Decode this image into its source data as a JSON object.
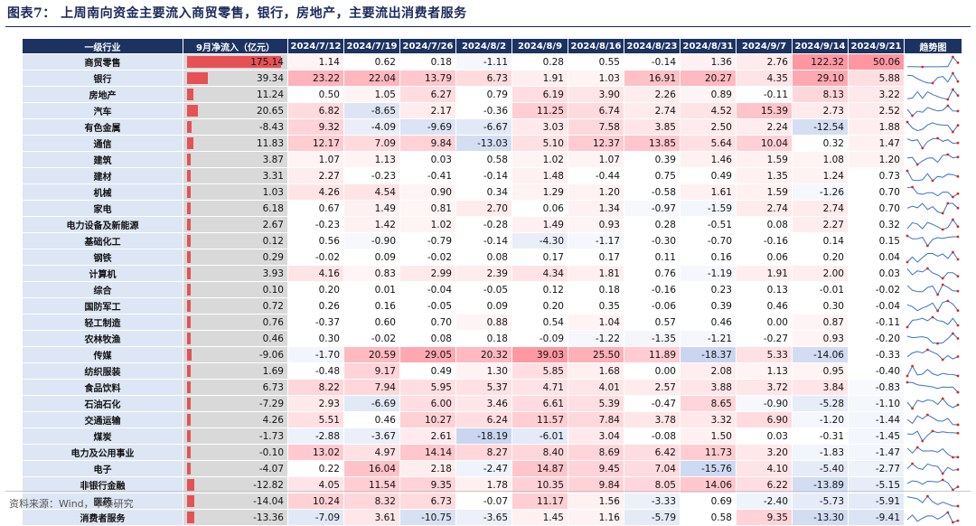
{
  "title": "图表7：  上周南向资金主要流入商贸零售，银行，房地产，主要流出消费者服务",
  "source": "资料来源：Wind，华泰研究",
  "colors": {
    "header_bg": "#1c3361",
    "industry_bg": "#dce6f4",
    "sep_bg": "#d9d9d9",
    "positive": "#e8383d",
    "negative": "#3a64b4",
    "spark_line": "#3a72c4",
    "spark_marker": "#d9262b"
  },
  "chart_data": {
    "type": "table",
    "headers": {
      "industry": "一级行业",
      "sep": "9月净流入（亿元）",
      "weeks": [
        "2024/7/12",
        "2024/7/19",
        "2024/7/26",
        "2024/8/2",
        "2024/8/9",
        "2024/8/16",
        "2024/8/23",
        "2024/8/31",
        "2024/9/7",
        "2024/9/14",
        "2024/9/21"
      ],
      "trend": "趋势图"
    },
    "rows": [
      {
        "name": "商贸零售",
        "sep": "175.14",
        "weeks": [
          "1.14",
          "0.62",
          "0.18",
          "-1.11",
          "0.28",
          "0.55",
          "-0.14",
          "1.36",
          "2.76",
          "122.32",
          "50.06"
        ]
      },
      {
        "name": "银行",
        "sep": "39.34",
        "weeks": [
          "23.22",
          "22.04",
          "13.79",
          "6.73",
          "1.91",
          "1.03",
          "16.91",
          "20.27",
          "4.35",
          "29.10",
          "5.88"
        ]
      },
      {
        "name": "房地产",
        "sep": "11.24",
        "weeks": [
          "0.50",
          "1.05",
          "6.27",
          "0.79",
          "6.19",
          "3.90",
          "2.26",
          "0.89",
          "-0.11",
          "8.13",
          "3.22"
        ]
      },
      {
        "name": "汽车",
        "sep": "20.65",
        "weeks": [
          "6.82",
          "-8.65",
          "2.17",
          "-0.36",
          "11.25",
          "6.74",
          "2.74",
          "4.52",
          "15.39",
          "2.73",
          "2.52"
        ]
      },
      {
        "name": "有色金属",
        "sep": "-8.43",
        "weeks": [
          "9.32",
          "-4.09",
          "-9.69",
          "-6.67",
          "3.03",
          "7.58",
          "3.85",
          "2.50",
          "2.24",
          "-12.54",
          "1.88"
        ]
      },
      {
        "name": "通信",
        "sep": "11.83",
        "weeks": [
          "12.17",
          "7.09",
          "9.84",
          "-13.03",
          "5.10",
          "12.37",
          "13.85",
          "5.64",
          "10.04",
          "0.32",
          "1.47"
        ]
      },
      {
        "name": "建筑",
        "sep": "3.87",
        "weeks": [
          "1.07",
          "1.13",
          "0.03",
          "0.58",
          "1.02",
          "1.07",
          "0.39",
          "1.46",
          "1.59",
          "1.08",
          "1.20"
        ]
      },
      {
        "name": "建材",
        "sep": "3.31",
        "weeks": [
          "2.27",
          "-0.23",
          "-0.41",
          "-0.14",
          "1.48",
          "-0.44",
          "0.75",
          "0.49",
          "1.35",
          "1.24",
          "0.73"
        ]
      },
      {
        "name": "机械",
        "sep": "1.03",
        "weeks": [
          "4.26",
          "4.54",
          "0.90",
          "0.34",
          "1.29",
          "1.20",
          "-0.58",
          "1.61",
          "1.59",
          "-1.26",
          "0.70"
        ]
      },
      {
        "name": "家电",
        "sep": "6.18",
        "weeks": [
          "0.67",
          "1.49",
          "0.81",
          "2.70",
          "0.06",
          "1.34",
          "-0.97",
          "-1.59",
          "2.74",
          "2.74",
          "0.70"
        ]
      },
      {
        "name": "电力设备及新能源",
        "sep": "2.67",
        "weeks": [
          "-0.23",
          "1.42",
          "1.02",
          "-0.28",
          "1.49",
          "0.93",
          "0.28",
          "-0.51",
          "0.08",
          "2.27",
          "0.32"
        ]
      },
      {
        "name": "基础化工",
        "sep": "0.12",
        "weeks": [
          "0.56",
          "-0.90",
          "-0.79",
          "-0.14",
          "-4.30",
          "-1.17",
          "-0.30",
          "-0.70",
          "-0.16",
          "0.14",
          "0.15"
        ]
      },
      {
        "name": "钢铁",
        "sep": "0.29",
        "weeks": [
          "-0.02",
          "0.09",
          "-0.02",
          "0.08",
          "0.17",
          "0.17",
          "0.11",
          "0.16",
          "0.06",
          "0.20",
          "0.04"
        ]
      },
      {
        "name": "计算机",
        "sep": "3.93",
        "weeks": [
          "4.16",
          "0.83",
          "2.99",
          "2.39",
          "4.34",
          "1.81",
          "0.76",
          "-1.19",
          "1.91",
          "2.00",
          "0.03"
        ]
      },
      {
        "name": "综合",
        "sep": "0.10",
        "weeks": [
          "0.20",
          "0.01",
          "-0.04",
          "-0.05",
          "0.12",
          "0.18",
          "-0.16",
          "0.23",
          "0.13",
          "-0.01",
          "-0.02"
        ]
      },
      {
        "name": "国防军工",
        "sep": "0.72",
        "weeks": [
          "0.26",
          "0.16",
          "-0.05",
          "0.09",
          "0.20",
          "0.35",
          "-0.06",
          "0.39",
          "0.46",
          "0.30",
          "-0.04"
        ]
      },
      {
        "name": "轻工制造",
        "sep": "0.76",
        "weeks": [
          "-0.37",
          "0.60",
          "0.70",
          "0.88",
          "0.54",
          "1.04",
          "0.57",
          "0.46",
          "0.00",
          "0.87",
          "-0.11"
        ]
      },
      {
        "name": "农林牧渔",
        "sep": "0.46",
        "weeks": [
          "0.30",
          "-0.02",
          "0.08",
          "0.18",
          "-0.09",
          "-1.22",
          "-1.35",
          "-1.21",
          "-0.27",
          "0.93",
          "-0.20"
        ]
      },
      {
        "name": "传媒",
        "sep": "-9.06",
        "weeks": [
          "-1.70",
          "20.59",
          "29.05",
          "20.32",
          "39.03",
          "25.50",
          "11.89",
          "-18.37",
          "5.33",
          "-14.06",
          "-0.33"
        ]
      },
      {
        "name": "纺织服装",
        "sep": "1.69",
        "weeks": [
          "-0.48",
          "9.17",
          "0.49",
          "1.30",
          "5.85",
          "1.68",
          "0.00",
          "2.08",
          "1.13",
          "0.95",
          "-0.40"
        ]
      },
      {
        "name": "食品饮料",
        "sep": "6.73",
        "weeks": [
          "8.22",
          "7.94",
          "5.95",
          "5.37",
          "4.71",
          "4.01",
          "2.57",
          "3.88",
          "3.72",
          "3.84",
          "-0.83"
        ]
      },
      {
        "name": "石油石化",
        "sep": "-7.29",
        "weeks": [
          "2.93",
          "-6.69",
          "6.00",
          "3.46",
          "6.61",
          "5.39",
          "-0.47",
          "8.65",
          "-0.90",
          "-5.28",
          "-1.10"
        ]
      },
      {
        "name": "交通运输",
        "sep": "4.26",
        "weeks": [
          "5.51",
          "0.46",
          "10.27",
          "6.24",
          "11.57",
          "7.84",
          "3.78",
          "3.32",
          "6.90",
          "-1.20",
          "-1.44"
        ]
      },
      {
        "name": "煤炭",
        "sep": "-1.73",
        "weeks": [
          "-2.88",
          "-3.67",
          "2.61",
          "-18.19",
          "-6.01",
          "3.04",
          "-0.08",
          "1.50",
          "0.03",
          "-0.31",
          "-1.45"
        ]
      },
      {
        "name": "电力及公用事业",
        "sep": "-0.10",
        "weeks": [
          "13.02",
          "4.97",
          "14.14",
          "8.27",
          "8.40",
          "8.69",
          "6.42",
          "11.73",
          "3.20",
          "-1.83",
          "-1.47"
        ]
      },
      {
        "name": "电子",
        "sep": "-4.07",
        "weeks": [
          "0.22",
          "16.04",
          "2.18",
          "-2.47",
          "14.87",
          "9.45",
          "7.04",
          "-15.76",
          "4.10",
          "-5.40",
          "-2.77"
        ]
      },
      {
        "name": "非银行金融",
        "sep": "-12.82",
        "weeks": [
          "4.05",
          "11.54",
          "9.35",
          "1.78",
          "10.35",
          "9.84",
          "8.05",
          "14.06",
          "6.22",
          "-13.89",
          "-5.15"
        ]
      },
      {
        "name": "医药",
        "sep": "-14.04",
        "weeks": [
          "10.24",
          "8.32",
          "6.73",
          "-0.07",
          "11.17",
          "1.56",
          "-3.33",
          "0.69",
          "-2.40",
          "-5.73",
          "-5.91"
        ]
      },
      {
        "name": "消费者服务",
        "sep": "-13.36",
        "weeks": [
          "-7.09",
          "3.61",
          "-10.75",
          "-3.65",
          "1.45",
          "1.16",
          "-5.79",
          "0.58",
          "9.35",
          "-13.30",
          "-9.41"
        ]
      }
    ]
  }
}
